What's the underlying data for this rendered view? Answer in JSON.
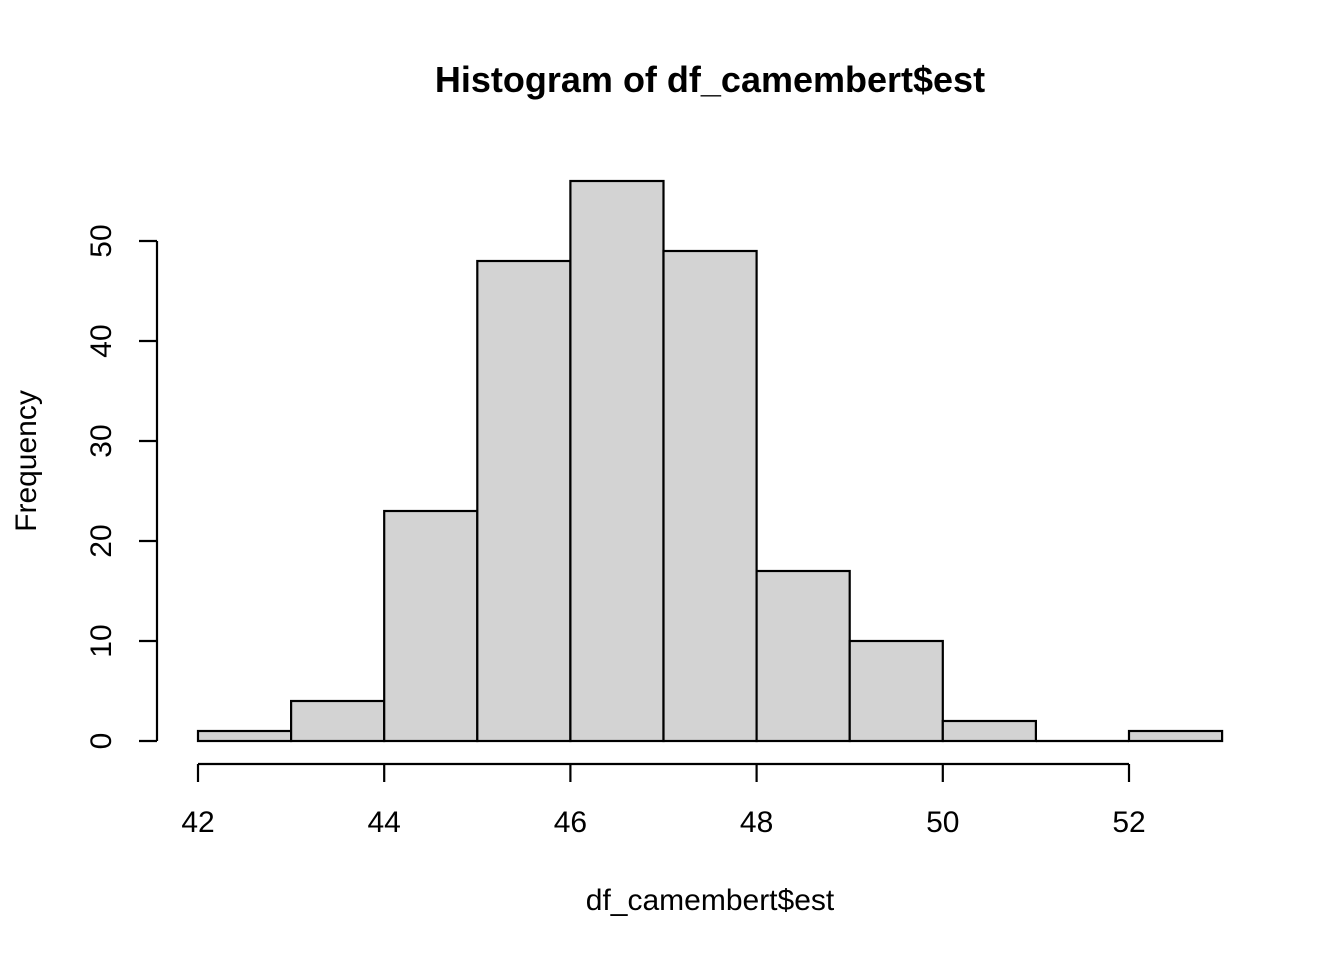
{
  "chart_data": {
    "type": "bar",
    "title": "Histogram of df_camembert$est",
    "xlabel": "df_camembert$est",
    "ylabel": "Frequency",
    "bin_edges": [
      42,
      43,
      44,
      45,
      46,
      47,
      48,
      49,
      50,
      51,
      52,
      53
    ],
    "values": [
      1,
      4,
      23,
      48,
      56,
      49,
      17,
      10,
      2,
      0,
      1
    ],
    "x_ticks": [
      42,
      44,
      46,
      48,
      50,
      52
    ],
    "y_ticks": [
      0,
      10,
      20,
      30,
      40,
      50
    ],
    "xlim": [
      42,
      53
    ],
    "ylim": [
      0,
      56
    ],
    "grid": false,
    "colors": {
      "bar_fill": "#d3d3d3",
      "bar_stroke": "#000000"
    }
  }
}
